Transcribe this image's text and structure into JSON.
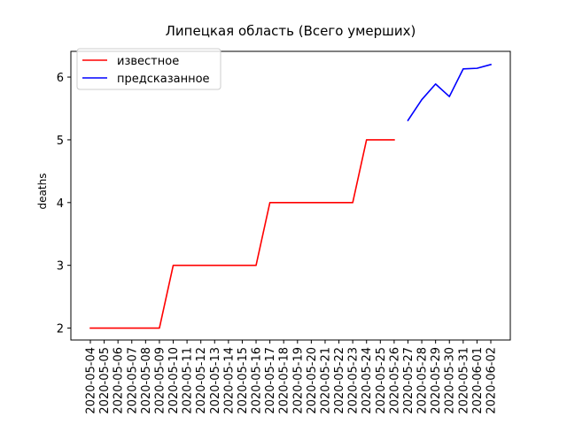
{
  "chart_data": {
    "type": "line",
    "title": "Липецкая область (Всего умерших)",
    "xlabel": "",
    "ylabel": "deaths",
    "x": [
      "2020-05-04",
      "2020-05-05",
      "2020-05-06",
      "2020-05-07",
      "2020-05-08",
      "2020-05-09",
      "2020-05-10",
      "2020-05-11",
      "2020-05-12",
      "2020-05-13",
      "2020-05-14",
      "2020-05-15",
      "2020-05-16",
      "2020-05-17",
      "2020-05-18",
      "2020-05-19",
      "2020-05-20",
      "2020-05-21",
      "2020-05-22",
      "2020-05-23",
      "2020-05-24",
      "2020-05-25",
      "2020-05-26",
      "2020-05-27",
      "2020-05-28",
      "2020-05-29",
      "2020-05-30",
      "2020-05-31",
      "2020-06-01",
      "2020-06-02"
    ],
    "yticks": [
      2,
      3,
      4,
      5,
      6
    ],
    "ylim": [
      1.81,
      6.41
    ],
    "grid": false,
    "legend_position": "top-left",
    "series": [
      {
        "name": "известное",
        "color": "#ff0000",
        "x": [
          "2020-05-04",
          "2020-05-05",
          "2020-05-06",
          "2020-05-07",
          "2020-05-08",
          "2020-05-09",
          "2020-05-10",
          "2020-05-11",
          "2020-05-12",
          "2020-05-13",
          "2020-05-14",
          "2020-05-15",
          "2020-05-16",
          "2020-05-17",
          "2020-05-18",
          "2020-05-19",
          "2020-05-20",
          "2020-05-21",
          "2020-05-22",
          "2020-05-23",
          "2020-05-24",
          "2020-05-25",
          "2020-05-26"
        ],
        "values": [
          2,
          2,
          2,
          2,
          2,
          2,
          3,
          3,
          3,
          3,
          3,
          3,
          3,
          4,
          4,
          4,
          4,
          4,
          4,
          4,
          5,
          5,
          5
        ]
      },
      {
        "name": "предсказанное",
        "color": "#0000ff",
        "x": [
          "2020-05-27",
          "2020-05-28",
          "2020-05-29",
          "2020-05-30",
          "2020-05-31",
          "2020-06-01",
          "2020-06-02"
        ],
        "values": [
          5.31,
          5.64,
          5.89,
          5.69,
          6.13,
          6.14,
          6.2
        ]
      }
    ]
  }
}
